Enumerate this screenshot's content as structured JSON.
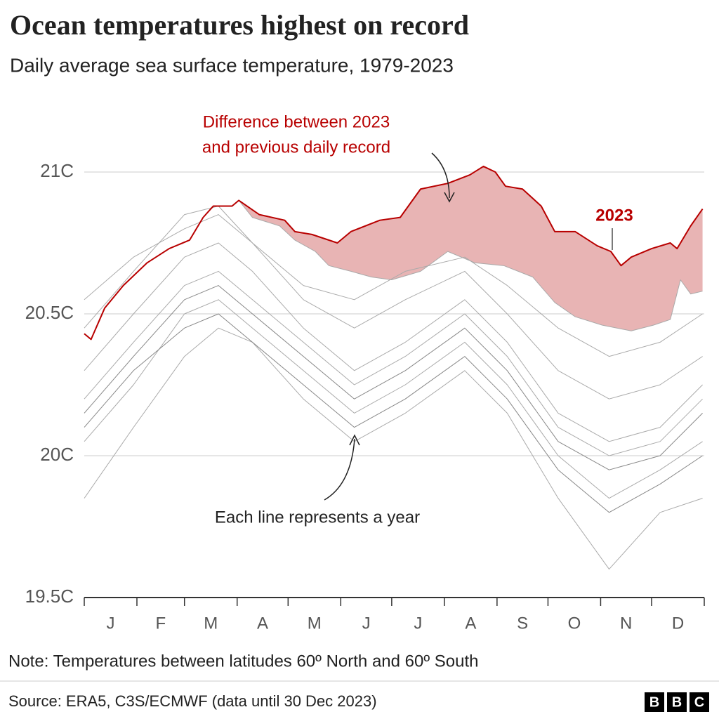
{
  "chart_data": {
    "type": "line",
    "title": "Ocean temperatures highest on record",
    "subtitle": "Daily average sea surface temperature, 1979-2023",
    "annotations": {
      "difference": [
        "Difference between 2023",
        "and previous daily record"
      ],
      "year_label": "2023",
      "each_line": "Each line represents a year"
    },
    "months": [
      "J",
      "F",
      "M",
      "A",
      "M",
      "J",
      "J",
      "A",
      "S",
      "O",
      "N",
      "D"
    ],
    "xlim": [
      1,
      366
    ],
    "xticks": [
      1,
      32,
      60,
      91,
      121,
      152,
      182,
      213,
      244,
      274,
      305,
      335,
      366
    ],
    "ylim": [
      19.5,
      21.05
    ],
    "yticks": [
      {
        "value": 19.5,
        "label": "19.5C"
      },
      {
        "value": 20,
        "label": "20C"
      },
      {
        "value": 20.5,
        "label": "20.5C"
      },
      {
        "value": 21,
        "label": "21C"
      }
    ],
    "grid": true,
    "series": [
      {
        "color": "#aaaaaa",
        "x": [
          1,
          30,
          60,
          80,
          100,
          130,
          160,
          190,
          225,
          250,
          280,
          310,
          340,
          365
        ],
        "values": [
          19.85,
          20.1,
          20.35,
          20.45,
          20.4,
          20.2,
          20.05,
          20.15,
          20.3,
          20.15,
          19.85,
          19.6,
          19.8,
          19.85
        ]
      },
      {
        "color": "#aaaaaa",
        "x": [
          1,
          30,
          60,
          80,
          100,
          130,
          160,
          190,
          225,
          250,
          280,
          310,
          340,
          365
        ],
        "values": [
          20.05,
          20.25,
          20.5,
          20.55,
          20.45,
          20.3,
          20.15,
          20.25,
          20.4,
          20.25,
          20.0,
          19.85,
          19.95,
          20.05
        ]
      },
      {
        "color": "#888888",
        "x": [
          1,
          30,
          60,
          80,
          100,
          130,
          160,
          190,
          225,
          250,
          280,
          310,
          340,
          365
        ],
        "values": [
          20.15,
          20.35,
          20.55,
          20.6,
          20.5,
          20.35,
          20.2,
          20.3,
          20.45,
          20.3,
          20.05,
          19.95,
          20.0,
          20.15
        ]
      },
      {
        "color": "#aaaaaa",
        "x": [
          1,
          30,
          60,
          80,
          100,
          130,
          160,
          190,
          225,
          250,
          280,
          310,
          340,
          365
        ],
        "values": [
          20.3,
          20.5,
          20.7,
          20.75,
          20.65,
          20.45,
          20.3,
          20.4,
          20.55,
          20.4,
          20.15,
          20.05,
          20.1,
          20.25
        ]
      },
      {
        "color": "#aaaaaa",
        "x": [
          1,
          30,
          60,
          80,
          100,
          130,
          160,
          190,
          225,
          250,
          280,
          310,
          340,
          365
        ],
        "values": [
          20.45,
          20.65,
          20.85,
          20.88,
          20.75,
          20.55,
          20.45,
          20.55,
          20.65,
          20.5,
          20.3,
          20.2,
          20.25,
          20.35
        ]
      },
      {
        "color": "#888888",
        "x": [
          1,
          30,
          60,
          80,
          100,
          130,
          160,
          190,
          225,
          250,
          280,
          310,
          340,
          365
        ],
        "values": [
          20.1,
          20.3,
          20.45,
          20.5,
          20.4,
          20.25,
          20.1,
          20.2,
          20.35,
          20.2,
          19.95,
          19.8,
          19.9,
          20.0
        ]
      },
      {
        "color": "#aaaaaa",
        "x": [
          1,
          30,
          60,
          80,
          100,
          130,
          160,
          190,
          225,
          250,
          280,
          310,
          340,
          365
        ],
        "values": [
          20.2,
          20.4,
          20.6,
          20.65,
          20.55,
          20.4,
          20.25,
          20.35,
          20.5,
          20.35,
          20.1,
          20.0,
          20.05,
          20.2
        ]
      },
      {
        "color": "#aaaaaa",
        "x": [
          1,
          30,
          60,
          80,
          100,
          130,
          160,
          190,
          225,
          250,
          280,
          310,
          340,
          365
        ],
        "values": [
          20.55,
          20.7,
          20.8,
          20.85,
          20.75,
          20.6,
          20.55,
          20.65,
          20.7,
          20.6,
          20.45,
          20.35,
          20.4,
          20.5
        ]
      },
      {
        "color": "#aaaaaa",
        "x": [
          92,
          100,
          116,
          125,
          137,
          145,
          158,
          170,
          182,
          199,
          215,
          231,
          248,
          265,
          278,
          290,
          306,
          323,
          336,
          346,
          352,
          358,
          365
        ],
        "values": [
          20.9,
          20.84,
          20.81,
          20.76,
          20.72,
          20.67,
          20.65,
          20.63,
          20.62,
          20.65,
          20.72,
          20.68,
          20.67,
          20.63,
          20.54,
          20.49,
          20.46,
          20.44,
          20.46,
          20.48,
          20.62,
          20.57,
          20.58
        ]
      },
      {
        "name": "2023",
        "color": "#b80000",
        "x": [
          1,
          5,
          13,
          24,
          38,
          51,
          63,
          71,
          77,
          88,
          92,
          104,
          119,
          125,
          135,
          150,
          158,
          175,
          187,
          199,
          215,
          228,
          236,
          243,
          249,
          259,
          270,
          278,
          290,
          303,
          311,
          317,
          323,
          335,
          346,
          350,
          358,
          365
        ],
        "values": [
          20.43,
          20.41,
          20.52,
          20.6,
          20.68,
          20.73,
          20.76,
          20.84,
          20.88,
          20.88,
          20.9,
          20.85,
          20.83,
          20.79,
          20.78,
          20.75,
          20.79,
          20.83,
          20.84,
          20.94,
          20.96,
          20.99,
          21.02,
          21.0,
          20.95,
          20.94,
          20.88,
          20.79,
          20.79,
          20.74,
          20.72,
          20.67,
          20.7,
          20.73,
          20.75,
          20.73,
          20.81,
          20.87
        ]
      }
    ],
    "difference_fill": "#e8b4b4",
    "note": "Note: Temperatures between latitudes 60º North and 60º South",
    "source": "Source: ERA5, C3S/ECMWF (data until 30 Dec 2023)",
    "logo": [
      "B",
      "B",
      "C"
    ]
  }
}
